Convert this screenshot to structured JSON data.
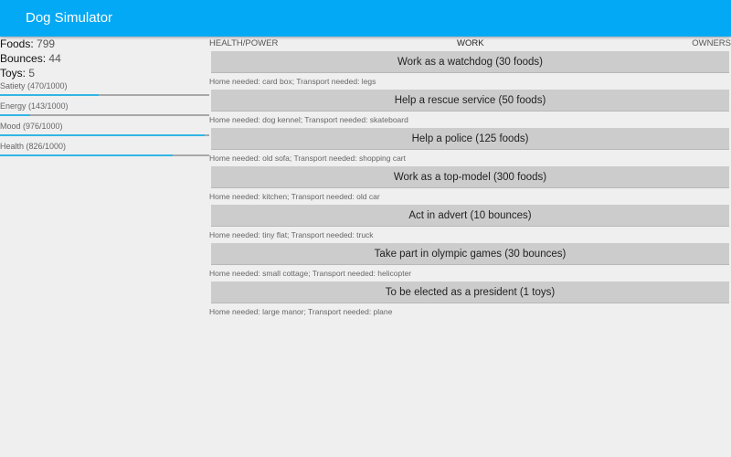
{
  "app": {
    "title": "Dog Simulator"
  },
  "resources": [
    {
      "label": "Foods:",
      "value": "799"
    },
    {
      "label": "Bounces:",
      "value": "44"
    },
    {
      "label": "Toys:",
      "value": "5"
    }
  ],
  "stats": [
    {
      "label": "Satiety (470/1000)",
      "value": 470,
      "max": 1000
    },
    {
      "label": "Energy (143/1000)",
      "value": 143,
      "max": 1000
    },
    {
      "label": "Mood (976/1000)",
      "value": 976,
      "max": 1000
    },
    {
      "label": "Health (826/1000)",
      "value": 826,
      "max": 1000
    }
  ],
  "tabs": [
    "HEALTH/POWER",
    "WORK",
    "OWNERS"
  ],
  "jobs": [
    {
      "label": "Work as a watchdog (30 foods)",
      "desc": "Home needed: card box; Transport needed: legs"
    },
    {
      "label": "Help a rescue service (50 foods)",
      "desc": "Home needed: dog kennel; Transport needed: skateboard"
    },
    {
      "label": "Help a police (125 foods)",
      "desc": "Home needed: old sofa; Transport needed: shopping cart"
    },
    {
      "label": "Work as a top-model (300 foods)",
      "desc": "Home needed: kitchen; Transport needed: old car"
    },
    {
      "label": "Act in advert (10 bounces)",
      "desc": "Home needed: tiny flat; Transport needed: truck"
    },
    {
      "label": "Take part in olympic games (30 bounces)",
      "desc": "Home needed: small cottage; Transport needed: helicopter"
    },
    {
      "label": "To be elected as a president (1 toys)",
      "desc": "Home needed: large manor; Transport needed: plane"
    }
  ],
  "colors": {
    "appbar": "#03a9f4",
    "progress": "#33b5e5"
  }
}
